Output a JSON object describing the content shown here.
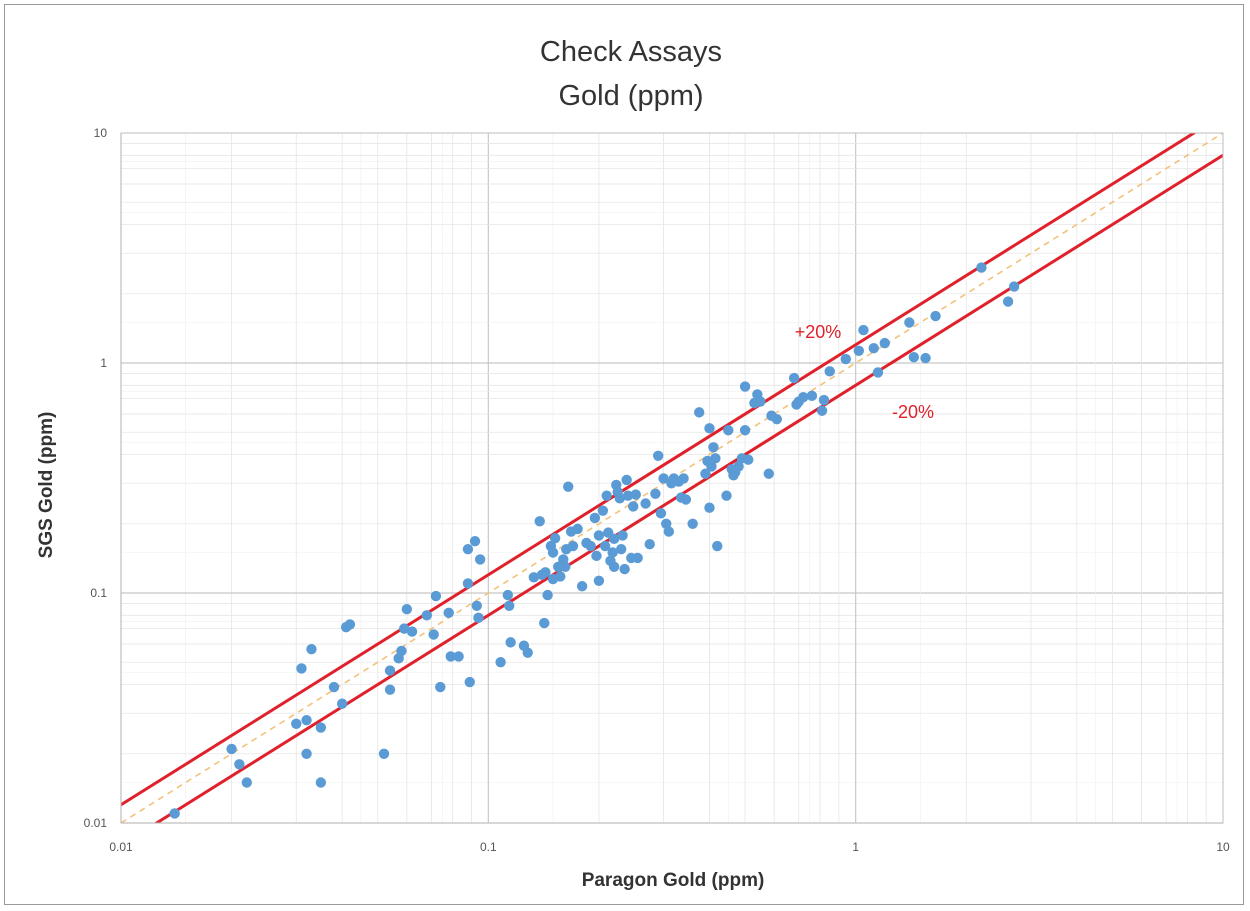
{
  "chart_data": {
    "type": "scatter",
    "title_line1": "Check Assays",
    "title_line2": "Gold (ppm)",
    "xlabel": "Paragon Gold (ppm)",
    "ylabel": "SGS Gold (ppm)",
    "x_scale": "log",
    "y_scale": "log",
    "xlim": [
      0.01,
      10
    ],
    "ylim": [
      0.01,
      10
    ],
    "x_ticks": [
      "0.01",
      "0.1",
      "1",
      "10"
    ],
    "y_ticks": [
      "0.01",
      "0.1",
      "1",
      "10"
    ],
    "grid": true,
    "reference_lines": [
      {
        "label": "+20%",
        "factor": 1.2,
        "color": "#e0202a",
        "style": "solid"
      },
      {
        "label": "-20%",
        "factor": 0.8,
        "color": "#e0202a",
        "style": "solid"
      },
      {
        "label": "",
        "factor": 1.0,
        "color": "#f2c27a",
        "style": "dashed"
      }
    ],
    "point_color": "#5b9bd5",
    "points": [
      [
        0.014,
        0.011
      ],
      [
        0.02,
        0.021
      ],
      [
        0.021,
        0.018
      ],
      [
        0.022,
        0.015
      ],
      [
        0.03,
        0.027
      ],
      [
        0.031,
        0.047
      ],
      [
        0.032,
        0.028
      ],
      [
        0.032,
        0.02
      ],
      [
        0.033,
        0.057
      ],
      [
        0.035,
        0.026
      ],
      [
        0.035,
        0.015
      ],
      [
        0.038,
        0.039
      ],
      [
        0.04,
        0.033
      ],
      [
        0.041,
        0.071
      ],
      [
        0.042,
        0.073
      ],
      [
        0.052,
        0.02
      ],
      [
        0.054,
        0.046
      ],
      [
        0.054,
        0.038
      ],
      [
        0.057,
        0.052
      ],
      [
        0.058,
        0.056
      ],
      [
        0.059,
        0.07
      ],
      [
        0.06,
        0.085
      ],
      [
        0.062,
        0.068
      ],
      [
        0.068,
        0.08
      ],
      [
        0.071,
        0.066
      ],
      [
        0.072,
        0.097
      ],
      [
        0.074,
        0.039
      ],
      [
        0.078,
        0.082
      ],
      [
        0.079,
        0.053
      ],
      [
        0.083,
        0.053
      ],
      [
        0.088,
        0.155
      ],
      [
        0.088,
        0.11
      ],
      [
        0.089,
        0.041
      ],
      [
        0.092,
        0.168
      ],
      [
        0.093,
        0.088
      ],
      [
        0.094,
        0.078
      ],
      [
        0.095,
        0.14
      ],
      [
        0.108,
        0.05
      ],
      [
        0.113,
        0.098
      ],
      [
        0.114,
        0.088
      ],
      [
        0.115,
        0.061
      ],
      [
        0.125,
        0.059
      ],
      [
        0.128,
        0.055
      ],
      [
        0.133,
        0.117
      ],
      [
        0.138,
        0.205
      ],
      [
        0.14,
        0.12
      ],
      [
        0.142,
        0.074
      ],
      [
        0.143,
        0.123
      ],
      [
        0.145,
        0.098
      ],
      [
        0.148,
        0.16
      ],
      [
        0.15,
        0.15
      ],
      [
        0.15,
        0.115
      ],
      [
        0.152,
        0.173
      ],
      [
        0.155,
        0.13
      ],
      [
        0.157,
        0.118
      ],
      [
        0.16,
        0.14
      ],
      [
        0.162,
        0.13
      ],
      [
        0.163,
        0.155
      ],
      [
        0.165,
        0.29
      ],
      [
        0.168,
        0.185
      ],
      [
        0.17,
        0.16
      ],
      [
        0.175,
        0.19
      ],
      [
        0.18,
        0.107
      ],
      [
        0.185,
        0.165
      ],
      [
        0.19,
        0.16
      ],
      [
        0.195,
        0.212
      ],
      [
        0.197,
        0.145
      ],
      [
        0.2,
        0.178
      ],
      [
        0.2,
        0.113
      ],
      [
        0.205,
        0.228
      ],
      [
        0.208,
        0.16
      ],
      [
        0.21,
        0.265
      ],
      [
        0.212,
        0.183
      ],
      [
        0.215,
        0.138
      ],
      [
        0.218,
        0.15
      ],
      [
        0.22,
        0.172
      ],
      [
        0.22,
        0.13
      ],
      [
        0.223,
        0.295
      ],
      [
        0.225,
        0.275
      ],
      [
        0.228,
        0.258
      ],
      [
        0.23,
        0.155
      ],
      [
        0.232,
        0.178
      ],
      [
        0.235,
        0.127
      ],
      [
        0.238,
        0.31
      ],
      [
        0.24,
        0.265
      ],
      [
        0.245,
        0.142
      ],
      [
        0.248,
        0.238
      ],
      [
        0.252,
        0.268
      ],
      [
        0.255,
        0.142
      ],
      [
        0.268,
        0.245
      ],
      [
        0.275,
        0.163
      ],
      [
        0.285,
        0.27
      ],
      [
        0.29,
        0.395
      ],
      [
        0.295,
        0.222
      ],
      [
        0.3,
        0.315
      ],
      [
        0.305,
        0.2
      ],
      [
        0.31,
        0.185
      ],
      [
        0.315,
        0.3
      ],
      [
        0.32,
        0.315
      ],
      [
        0.33,
        0.305
      ],
      [
        0.335,
        0.26
      ],
      [
        0.34,
        0.315
      ],
      [
        0.345,
        0.255
      ],
      [
        0.36,
        0.2
      ],
      [
        0.375,
        0.61
      ],
      [
        0.39,
        0.33
      ],
      [
        0.395,
        0.375
      ],
      [
        0.4,
        0.235
      ],
      [
        0.4,
        0.52
      ],
      [
        0.405,
        0.355
      ],
      [
        0.41,
        0.43
      ],
      [
        0.415,
        0.385
      ],
      [
        0.42,
        0.16
      ],
      [
        0.445,
        0.265
      ],
      [
        0.45,
        0.51
      ],
      [
        0.46,
        0.345
      ],
      [
        0.465,
        0.325
      ],
      [
        0.47,
        0.335
      ],
      [
        0.48,
        0.355
      ],
      [
        0.49,
        0.385
      ],
      [
        0.5,
        0.79
      ],
      [
        0.5,
        0.51
      ],
      [
        0.51,
        0.38
      ],
      [
        0.53,
        0.67
      ],
      [
        0.54,
        0.73
      ],
      [
        0.55,
        0.68
      ],
      [
        0.58,
        0.33
      ],
      [
        0.59,
        0.59
      ],
      [
        0.61,
        0.57
      ],
      [
        0.68,
        0.86
      ],
      [
        0.69,
        0.66
      ],
      [
        0.7,
        0.68
      ],
      [
        0.72,
        0.71
      ],
      [
        0.76,
        0.72
      ],
      [
        0.81,
        0.62
      ],
      [
        0.82,
        0.69
      ],
      [
        0.85,
        0.92
      ],
      [
        0.94,
        1.04
      ],
      [
        1.02,
        1.13
      ],
      [
        1.05,
        1.39
      ],
      [
        1.12,
        1.16
      ],
      [
        1.15,
        0.91
      ],
      [
        1.2,
        1.22
      ],
      [
        1.4,
        1.5
      ],
      [
        1.44,
        1.06
      ],
      [
        1.55,
        1.05
      ],
      [
        1.65,
        1.6
      ],
      [
        2.2,
        2.6
      ],
      [
        2.6,
        1.85
      ],
      [
        2.7,
        2.15
      ]
    ]
  }
}
